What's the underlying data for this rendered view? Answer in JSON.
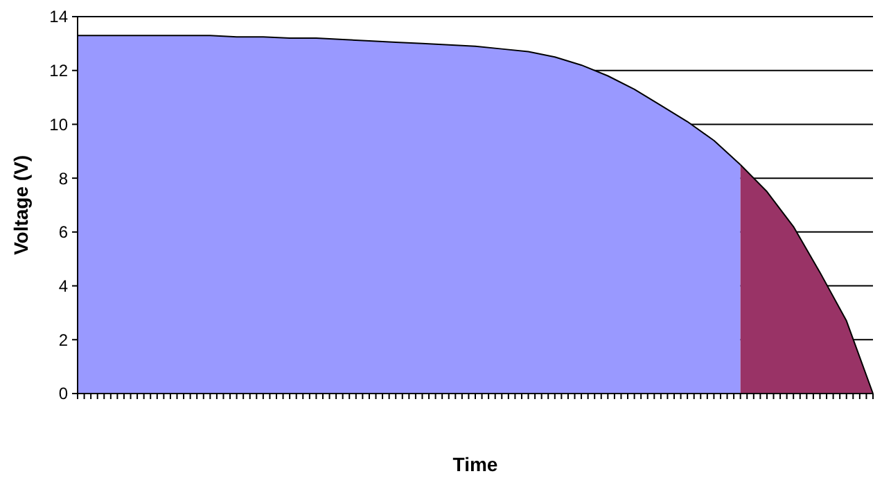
{
  "chart_data": {
    "type": "area",
    "xlabel": "Time",
    "ylabel": "Voltage (V)",
    "categories": [
      null,
      null,
      null,
      null,
      null,
      null,
      null,
      null,
      null,
      null,
      null,
      null,
      null,
      null,
      null,
      null,
      null,
      null,
      null,
      null,
      null,
      null,
      null,
      null,
      null,
      null,
      null,
      null,
      null,
      null,
      null
    ],
    "series": [
      {
        "color": "#9999ff",
        "values": [
          13.3,
          13.3,
          13.3,
          13.3,
          13.3,
          13.3,
          13.25,
          13.25,
          13.2,
          13.2,
          13.15,
          13.1,
          13.05,
          13.0,
          12.95,
          12.9,
          12.8,
          12.7,
          12.5,
          12.2,
          11.8,
          11.3,
          10.7,
          10.1,
          9.4,
          8.5,
          null,
          null,
          null,
          null,
          null
        ]
      },
      {
        "color": "#993366",
        "values": [
          null,
          null,
          null,
          null,
          null,
          null,
          null,
          null,
          null,
          null,
          null,
          null,
          null,
          null,
          null,
          null,
          null,
          null,
          null,
          null,
          null,
          null,
          null,
          null,
          null,
          8.5,
          7.5,
          6.2,
          4.5,
          2.7,
          0
        ]
      }
    ],
    "ylim": [
      0,
      14
    ],
    "yticks": [
      0,
      2,
      4,
      6,
      8,
      10,
      12,
      14
    ],
    "grid": "y"
  }
}
